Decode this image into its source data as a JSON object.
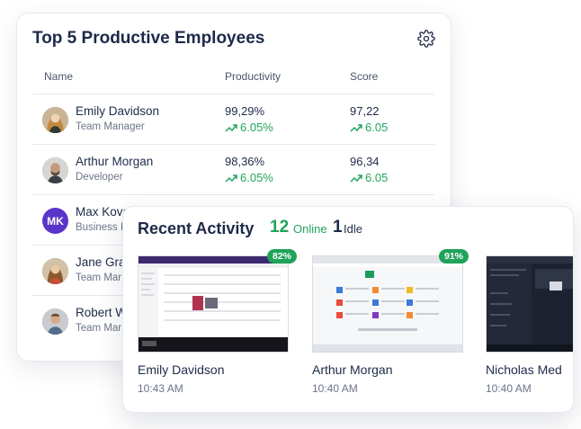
{
  "top_card": {
    "title": "Top 5 Productive Employees",
    "columns": {
      "name": "Name",
      "productivity": "Productivity",
      "score": "Score"
    },
    "employees": [
      {
        "name": "Emily Davidson",
        "role": "Team Manager",
        "productivity": "99,29%",
        "productivity_change": "6.05%",
        "score": "97,22",
        "score_change": "6.05",
        "avatar": "photo"
      },
      {
        "name": "Arthur Morgan",
        "role": "Developer",
        "productivity": "98,36%",
        "productivity_change": "6.05%",
        "score": "96,34",
        "score_change": "6.05",
        "avatar": "photo"
      },
      {
        "name": "Max Kova",
        "role": "Business I",
        "avatar": "initials",
        "initials": "MK"
      },
      {
        "name": "Jane Gra",
        "role": "Team Mar",
        "avatar": "photo"
      },
      {
        "name": "Robert W",
        "role": "Team Mar",
        "avatar": "photo"
      }
    ]
  },
  "activity_card": {
    "title": "Recent Activity",
    "online_count": "12",
    "online_label": "Online",
    "idle_count": "1",
    "idle_label": "Idle",
    "items": [
      {
        "name": "Emily Davidson",
        "time": "10:43 AM",
        "percent": "82%"
      },
      {
        "name": "Arthur Morgan",
        "time": "10:40 AM",
        "percent": "91%"
      },
      {
        "name": "Nicholas Med",
        "time": "10:40 AM"
      }
    ]
  },
  "colors": {
    "accent_green": "#22a45d",
    "badge_green": "#1fa35a",
    "title_navy": "#1e2a4a",
    "avatar_purple": "#5b35c9"
  },
  "icons": [
    "gear-icon",
    "trend-up-icon"
  ]
}
